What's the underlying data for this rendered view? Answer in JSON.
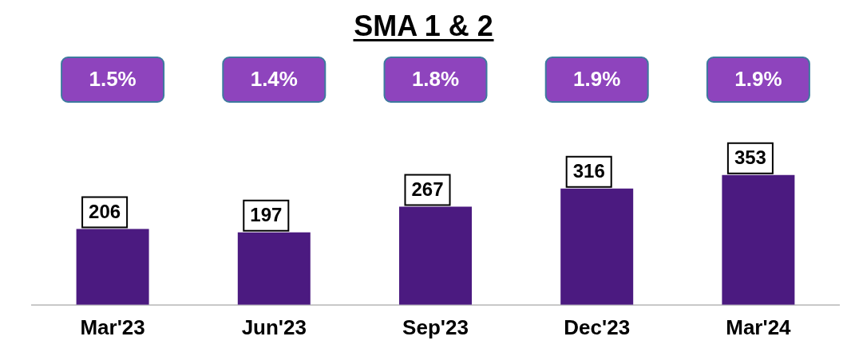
{
  "chart_data": {
    "type": "bar",
    "title": "SMA 1 & 2",
    "categories": [
      "Mar'23",
      "Jun'23",
      "Sep'23",
      "Dec'23",
      "Mar'24"
    ],
    "values": [
      206,
      197,
      267,
      316,
      353
    ],
    "color": "#4b1a80",
    "data_labels": true,
    "grid": false,
    "legend": false,
    "annotations": [
      "1.5%",
      "1.4%",
      "1.8%",
      "1.9%",
      "1.9%"
    ]
  }
}
